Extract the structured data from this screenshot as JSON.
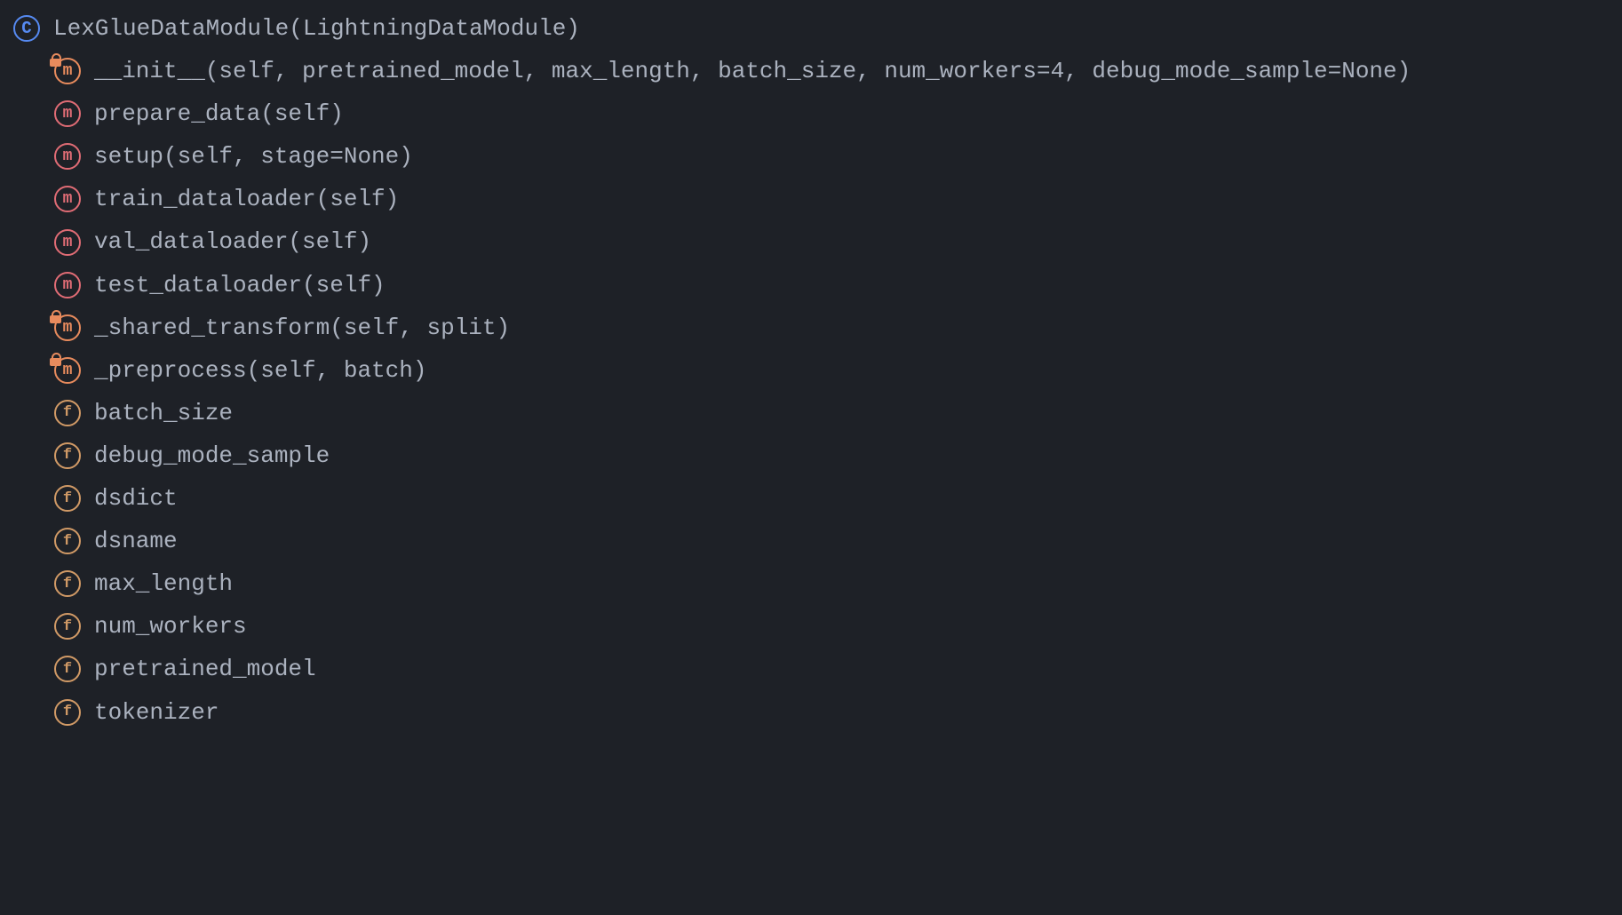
{
  "colors": {
    "background": "#1e2127",
    "text": "#abb2bf",
    "class_icon": "#568af2",
    "method_icon": "#e06c75",
    "private_method_icon": "#e88b5d",
    "field_icon": "#d19a66"
  },
  "class": {
    "signature": "LexGlueDataModule(LightningDataModule)",
    "members": [
      {
        "kind": "method",
        "private": true,
        "signature": "__init__(self, pretrained_model, max_length, batch_size, num_workers=4, debug_mode_sample=None)"
      },
      {
        "kind": "method",
        "private": false,
        "signature": "prepare_data(self)"
      },
      {
        "kind": "method",
        "private": false,
        "signature": "setup(self, stage=None)"
      },
      {
        "kind": "method",
        "private": false,
        "signature": "train_dataloader(self)"
      },
      {
        "kind": "method",
        "private": false,
        "signature": "val_dataloader(self)"
      },
      {
        "kind": "method",
        "private": false,
        "signature": "test_dataloader(self)"
      },
      {
        "kind": "method",
        "private": true,
        "signature": "_shared_transform(self, split)"
      },
      {
        "kind": "method",
        "private": true,
        "signature": "_preprocess(self, batch)"
      },
      {
        "kind": "field",
        "private": false,
        "signature": "batch_size"
      },
      {
        "kind": "field",
        "private": false,
        "signature": "debug_mode_sample"
      },
      {
        "kind": "field",
        "private": false,
        "signature": "dsdict"
      },
      {
        "kind": "field",
        "private": false,
        "signature": "dsname"
      },
      {
        "kind": "field",
        "private": false,
        "signature": "max_length"
      },
      {
        "kind": "field",
        "private": false,
        "signature": "num_workers"
      },
      {
        "kind": "field",
        "private": false,
        "signature": "pretrained_model"
      },
      {
        "kind": "field",
        "private": false,
        "signature": "tokenizer"
      }
    ]
  },
  "icon_letters": {
    "class": "C",
    "method": "m",
    "field": "f"
  }
}
